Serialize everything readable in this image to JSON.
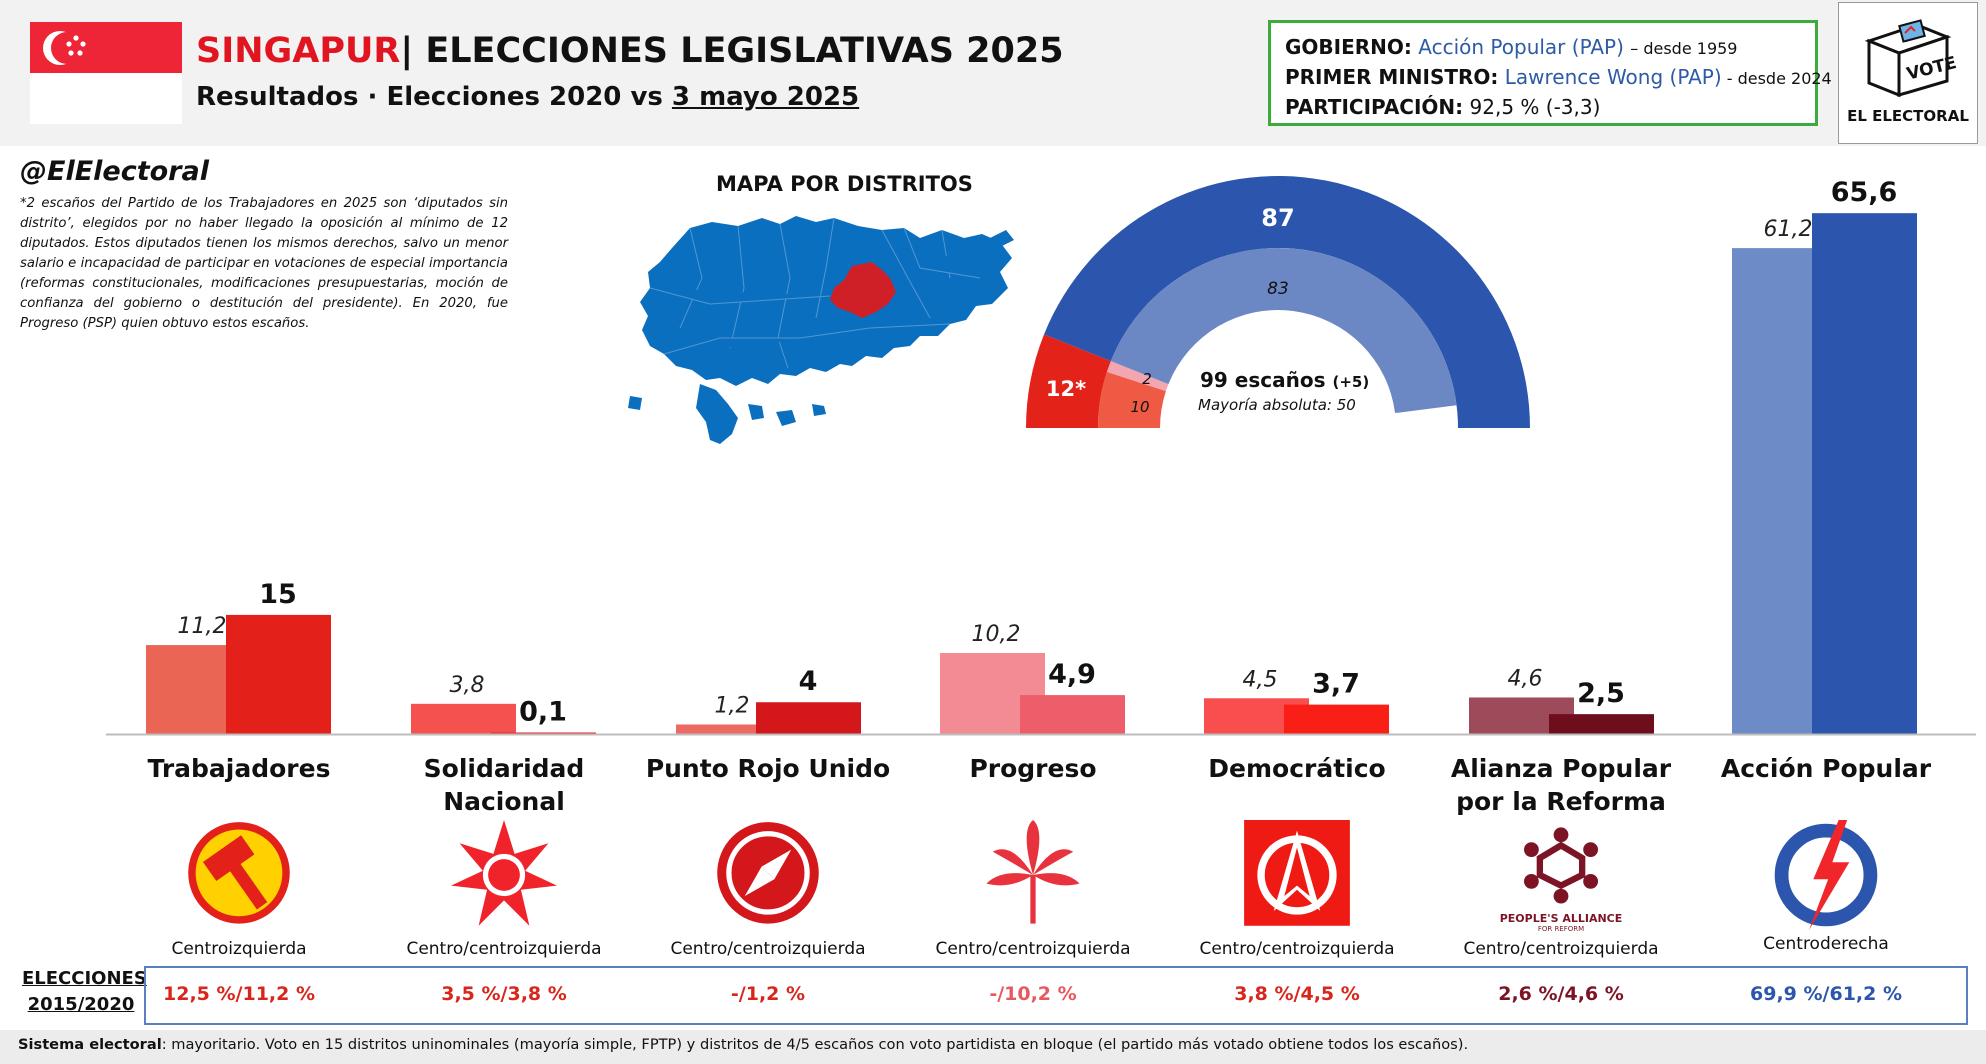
{
  "header": {
    "country": "SINGAPUR",
    "title_rest": "| ELECCIONES LEGISLATIVAS 2025",
    "subtitle_prefix": "Resultados · Elecciones 2020 vs ",
    "subtitle_date": "3 mayo 2025"
  },
  "gov_box": {
    "gov_label": "GOBIERNO:",
    "gov_value": "Acción Popular (PAP)",
    "gov_since": "– desde 1959",
    "pm_label": "PRIMER MINISTRO:",
    "pm_value": "Lawrence Wong (PAP)",
    "pm_since": " - desde 2024",
    "turnout_label": "PARTICIPACIÓN:",
    "turnout_value": "92,5 % (-3,3)"
  },
  "logo": {
    "vote": "VOTE",
    "brand": "EL ELECTORAL"
  },
  "handle": "@ElElectoral",
  "note": "*2 escaños del Partido de los Trabajadores en 2025 son ‘diputados sin distrito’, elegidos por no haber llegado la oposición al mínimo de 12 diputados. Estos diputados tienen los mismos derechos, salvo un menor salario e incapacidad de participar en votaciones de especial importancia (reformas constitucionales, modificaciones presupuestarias, moción de confianza del gobierno o destitución del presidente). En 2020, fue Progreso (PSP) quien obtuvo estos escaños.",
  "map_title": "MAPA POR DISTRITOS",
  "map_colors": {
    "pap": "#0b6fbf",
    "wp": "#cf2027"
  },
  "seats": {
    "outer": [
      {
        "value": "12*",
        "seats": 12,
        "color": "#e3231a"
      },
      {
        "value": "87",
        "seats": 87,
        "color": "#2c56ad"
      }
    ],
    "inner": [
      {
        "value": "10",
        "seats": 10,
        "color": "#ef5a45"
      },
      {
        "value": "2",
        "seats": 2,
        "color": "#f4a6b0"
      },
      {
        "value": "83",
        "seats": 83,
        "color": "#6c88c4"
      }
    ],
    "total_label": "99 escaños",
    "total_change": "(+5)",
    "majority": "Mayoría absoluta: 50"
  },
  "chart_data": {
    "type": "bar",
    "categories": [
      "Trabajadores",
      "Solidaridad Nacional",
      "Punto Rojo Unido",
      "Progreso",
      "Democrático",
      "Alianza Popular por la Reforma",
      "Acción Popular"
    ],
    "series": [
      {
        "values": [
          11.2,
          3.8,
          1.2,
          10.2,
          4.5,
          4.6,
          61.2
        ],
        "labels": [
          "11,2",
          "3,8",
          "1,2",
          "10,2",
          "4,5",
          "4,6",
          "61,2"
        ]
      },
      {
        "values": [
          15,
          0.1,
          4,
          4.9,
          3.7,
          2.5,
          65.6
        ],
        "labels": [
          "15",
          "0,1",
          "4",
          "4,9",
          "3,7",
          "2,5",
          "65,6"
        ]
      }
    ],
    "colors_2020": [
      "#ea6553",
      "#f4514f",
      "#ec6a63",
      "#f38b95",
      "#f84e4e",
      "#9d4b5b",
      "#6d8cc7"
    ],
    "colors_2025": [
      "#e3211a",
      "#f0262a",
      "#d3171b",
      "#ee5d6a",
      "#fa1f16",
      "#6e0d1b",
      "#2c56ad"
    ],
    "ylim": [
      0,
      66
    ]
  },
  "parties": [
    {
      "name": "Trabajadores",
      "ideology": "Centroizquierda",
      "history": "12,5 %/11,2 %",
      "hist_color": "#d9261c",
      "logo": "hammer-icon"
    },
    {
      "name": "Solidaridad Nacional",
      "ideology": "Centro/centroizquierda",
      "history": "3,5 %/3,8 %",
      "hist_color": "#d9261c",
      "logo": "star-burst-icon"
    },
    {
      "name": "Punto Rojo Unido",
      "ideology": "Centro/centroizquierda",
      "history": "-/1,2 %",
      "hist_color": "#d9261c",
      "logo": "compass-icon"
    },
    {
      "name": "Progreso",
      "ideology": "Centro/centroizquierda",
      "history": "-/10,2 %",
      "hist_color": "#e7595f",
      "logo": "palm-icon"
    },
    {
      "name": "Democrático",
      "ideology": "Centro/centroizquierda",
      "history": "3,8 %/4,5 %",
      "hist_color": "#d9261c",
      "logo": "arrow-circle-icon"
    },
    {
      "name": "Alianza Popular por la Reforma",
      "ideology": "Centro/centroizquierda",
      "history": "2,6 %/4,6 %",
      "hist_color": "#7d1426",
      "logo": "people-ring-icon",
      "logo_text": "PEOPLE'S ALLIANCE",
      "logo_text2": "FOR REFORM"
    },
    {
      "name": "Acción Popular",
      "ideology": "Centroderecha",
      "history": "69,9 %/61,2 %",
      "hist_color": "#2c56ad",
      "logo": "lightning-circle-icon"
    }
  ],
  "history_label": "ELECCIONES 2015/2020",
  "footer": {
    "label": "Sistema electoral",
    "text": ": mayoritario. Voto en 15 distritos uninominales (mayoría simple, FPTP) y distritos de 4/5 escaños con voto partidista en bloque (el partido más votado obtiene todos los escaños)."
  }
}
